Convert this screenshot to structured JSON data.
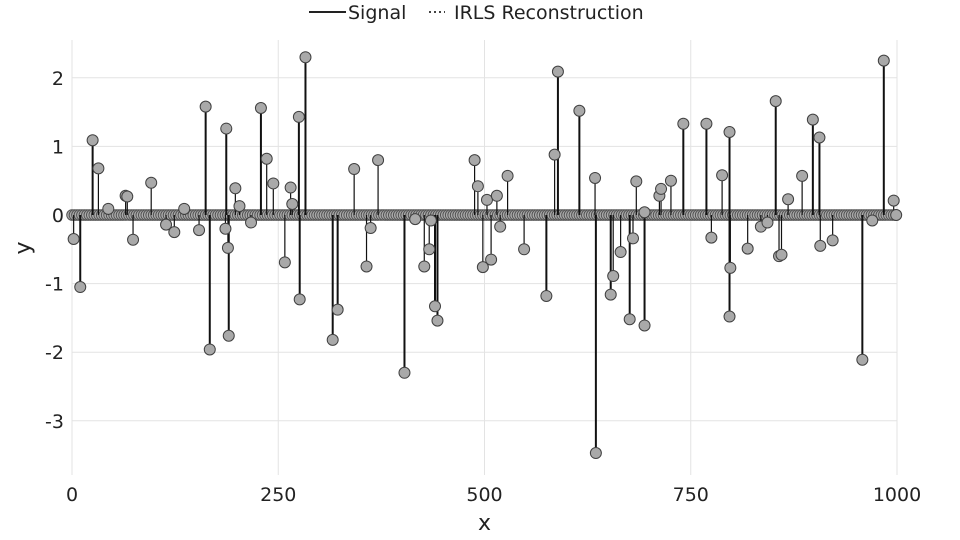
{
  "chart_data": {
    "type": "scatter",
    "subtype": "stem",
    "xlabel": "x",
    "ylabel": "y",
    "xlim": [
      0,
      1000
    ],
    "ylim": [
      -3.6,
      2.6
    ],
    "x_ticks": [
      0,
      250,
      500,
      750,
      1000
    ],
    "y_ticks": [
      -3,
      -2,
      -1,
      0,
      1,
      2
    ],
    "x_tick_labels": [
      "0",
      "250",
      "500",
      "750",
      "1000"
    ],
    "y_tick_labels": [
      "-3",
      "-2",
      "-1",
      "0",
      "1",
      "2"
    ],
    "grid": true,
    "legend_position": "top-center",
    "series": [
      {
        "name": "Signal",
        "style": "solid",
        "marker": "none"
      },
      {
        "name": "IRLS Reconstruction",
        "style": "dotted",
        "marker": "circle"
      }
    ],
    "n_points": 1000,
    "nonzero_points": [
      [
        2,
        -0.35
      ],
      [
        10,
        -1.05
      ],
      [
        25,
        1.09
      ],
      [
        32,
        0.68
      ],
      [
        44,
        0.09
      ],
      [
        65,
        0.28
      ],
      [
        67,
        0.27
      ],
      [
        74,
        -0.36
      ],
      [
        96,
        0.47
      ],
      [
        114,
        -0.14
      ],
      [
        124,
        -0.25
      ],
      [
        136,
        0.09
      ],
      [
        154,
        -0.22
      ],
      [
        162,
        1.58
      ],
      [
        167,
        -1.96
      ],
      [
        186,
        -0.2
      ],
      [
        187,
        1.26
      ],
      [
        189,
        -0.48
      ],
      [
        190,
        -1.76
      ],
      [
        198,
        0.39
      ],
      [
        203,
        0.13
      ],
      [
        217,
        -0.11
      ],
      [
        229,
        1.56
      ],
      [
        236,
        0.82
      ],
      [
        244,
        0.46
      ],
      [
        258,
        -0.69
      ],
      [
        265,
        0.4
      ],
      [
        267,
        0.16
      ],
      [
        275,
        1.43
      ],
      [
        276,
        -1.23
      ],
      [
        283,
        2.3
      ],
      [
        316,
        -1.82
      ],
      [
        322,
        -1.38
      ],
      [
        342,
        0.67
      ],
      [
        357,
        -0.75
      ],
      [
        362,
        -0.19
      ],
      [
        371,
        0.8
      ],
      [
        403,
        -2.3
      ],
      [
        416,
        -0.06
      ],
      [
        427,
        -0.75
      ],
      [
        433,
        -0.5
      ],
      [
        435,
        -0.08
      ],
      [
        440,
        -1.33
      ],
      [
        443,
        -1.54
      ],
      [
        488,
        0.8
      ],
      [
        492,
        0.42
      ],
      [
        498,
        -0.76
      ],
      [
        503,
        0.22
      ],
      [
        508,
        -0.65
      ],
      [
        515,
        0.28
      ],
      [
        519,
        -0.17
      ],
      [
        528,
        0.57
      ],
      [
        548,
        -0.5
      ],
      [
        575,
        -1.18
      ],
      [
        585,
        0.88
      ],
      [
        589,
        2.09
      ],
      [
        615,
        1.52
      ],
      [
        634,
        0.54
      ],
      [
        635,
        -3.47
      ],
      [
        653,
        -1.16
      ],
      [
        656,
        -0.89
      ],
      [
        665,
        -0.54
      ],
      [
        676,
        -1.52
      ],
      [
        680,
        -0.34
      ],
      [
        684,
        0.49
      ],
      [
        694,
        -1.61
      ],
      [
        694,
        0.04
      ],
      [
        712,
        0.28
      ],
      [
        714,
        0.38
      ],
      [
        726,
        0.5
      ],
      [
        741,
        1.33
      ],
      [
        769,
        1.33
      ],
      [
        775,
        -0.33
      ],
      [
        788,
        0.58
      ],
      [
        797,
        1.21
      ],
      [
        797,
        -1.48
      ],
      [
        798,
        -0.77
      ],
      [
        819,
        -0.49
      ],
      [
        835,
        -0.17
      ],
      [
        843,
        -0.11
      ],
      [
        853,
        1.66
      ],
      [
        857,
        -0.6
      ],
      [
        860,
        -0.58
      ],
      [
        868,
        0.23
      ],
      [
        885,
        0.57
      ],
      [
        898,
        1.39
      ],
      [
        906,
        1.13
      ],
      [
        907,
        -0.45
      ],
      [
        922,
        -0.37
      ],
      [
        958,
        -2.11
      ],
      [
        970,
        -0.08
      ],
      [
        984,
        2.25
      ],
      [
        996,
        0.21
      ],
      [
        999,
        0.0
      ]
    ]
  }
}
